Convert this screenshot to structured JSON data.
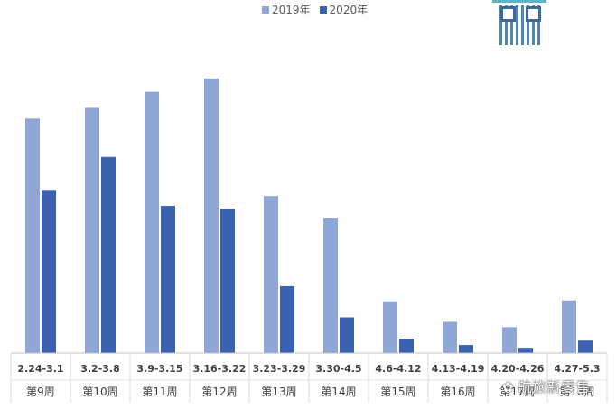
{
  "legend": {
    "items": [
      {
        "label": "2019年",
        "color": "#8fa6d6"
      },
      {
        "label": "2020年",
        "color": "#3b62b0"
      }
    ]
  },
  "watermark": {
    "text": "航旅新零售",
    "icon": "wechat-icon"
  },
  "chart_data": {
    "type": "bar",
    "categories": [
      "2.24-3.1",
      "3.2-3.8",
      "3.9-3.15",
      "3.16-3.22",
      "3.23-3.29",
      "3.30-4.5",
      "4.6-4.12",
      "4.13-4.19",
      "4.20-4.26",
      "4.27-5.3"
    ],
    "sub_categories": [
      "第9周",
      "第10周",
      "第11周",
      "第12周",
      "第13周",
      "第14周",
      "第15周",
      "第16周",
      "第17周",
      "第18周"
    ],
    "series": [
      {
        "name": "2019年",
        "color": "#8fa6d6",
        "values": [
          263,
          275,
          293,
          308,
          176,
          151,
          58,
          35,
          29,
          59
        ]
      },
      {
        "name": "2020年",
        "color": "#3b62b0",
        "values": [
          183,
          220,
          165,
          162,
          75,
          40,
          16,
          9,
          6,
          14
        ]
      }
    ],
    "ylim": [
      0,
      320
    ],
    "title": "",
    "xlabel": "",
    "ylabel": "",
    "grid": false,
    "legend_position": "top-center"
  }
}
